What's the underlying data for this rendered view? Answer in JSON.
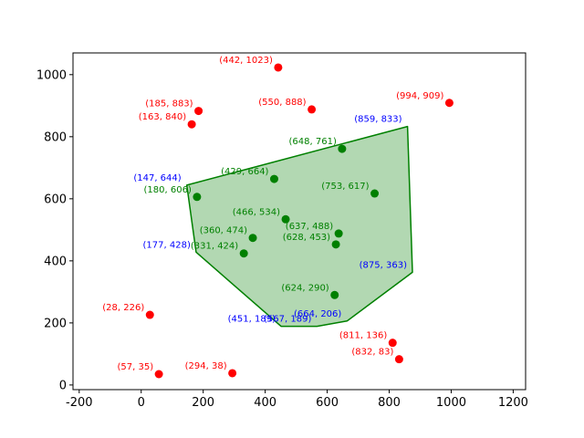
{
  "chart_data": {
    "type": "scatter",
    "title": "",
    "xlabel": "",
    "ylabel": "",
    "xlim": [
      -220,
      1240
    ],
    "ylim": [
      -15,
      1070
    ],
    "xticks": [
      -200,
      0,
      200,
      400,
      600,
      800,
      1000,
      1200
    ],
    "yticks": [
      0,
      200,
      400,
      600,
      800,
      1000
    ],
    "grid": false,
    "colors": {
      "outside": "#ff0000",
      "inside": "#008000",
      "hull_vertex": "#0000ff",
      "hull_edge": "#008000",
      "hull_fill": "#b2d8b2"
    },
    "hull": [
      {
        "x": 147,
        "y": 644,
        "label": "(147, 644)"
      },
      {
        "x": 859,
        "y": 833,
        "label": "(859, 833)"
      },
      {
        "x": 875,
        "y": 363,
        "label": "(875, 363)"
      },
      {
        "x": 664,
        "y": 206,
        "label": "(664, 206)"
      },
      {
        "x": 567,
        "y": 189,
        "label": "(567, 189)"
      },
      {
        "x": 451,
        "y": 189,
        "label": "(451, 189)"
      },
      {
        "x": 177,
        "y": 428,
        "label": "(177, 428)"
      }
    ],
    "inside_points": [
      {
        "x": 648,
        "y": 761,
        "label": "(648, 761)"
      },
      {
        "x": 429,
        "y": 664,
        "label": "(429, 664)"
      },
      {
        "x": 180,
        "y": 606,
        "label": "(180, 606)"
      },
      {
        "x": 753,
        "y": 617,
        "label": "(753, 617)"
      },
      {
        "x": 466,
        "y": 534,
        "label": "(466, 534)"
      },
      {
        "x": 637,
        "y": 488,
        "label": "(637, 488)"
      },
      {
        "x": 360,
        "y": 474,
        "label": "(360, 474)"
      },
      {
        "x": 628,
        "y": 453,
        "label": "(628, 453)"
      },
      {
        "x": 331,
        "y": 424,
        "label": "(331, 424)"
      },
      {
        "x": 624,
        "y": 290,
        "label": "(624, 290)"
      }
    ],
    "outside_points": [
      {
        "x": 442,
        "y": 1023,
        "label": "(442, 1023)"
      },
      {
        "x": 185,
        "y": 883,
        "label": "(185, 883)"
      },
      {
        "x": 550,
        "y": 888,
        "label": "(550, 888)"
      },
      {
        "x": 994,
        "y": 909,
        "label": "(994, 909)"
      },
      {
        "x": 163,
        "y": 840,
        "label": "(163, 840)"
      },
      {
        "x": 28,
        "y": 226,
        "label": "(28, 226)"
      },
      {
        "x": 811,
        "y": 136,
        "label": "(811, 136)"
      },
      {
        "x": 832,
        "y": 83,
        "label": "(832, 83)"
      },
      {
        "x": 57,
        "y": 35,
        "label": "(57, 35)"
      },
      {
        "x": 294,
        "y": 38,
        "label": "(294, 38)"
      }
    ]
  }
}
